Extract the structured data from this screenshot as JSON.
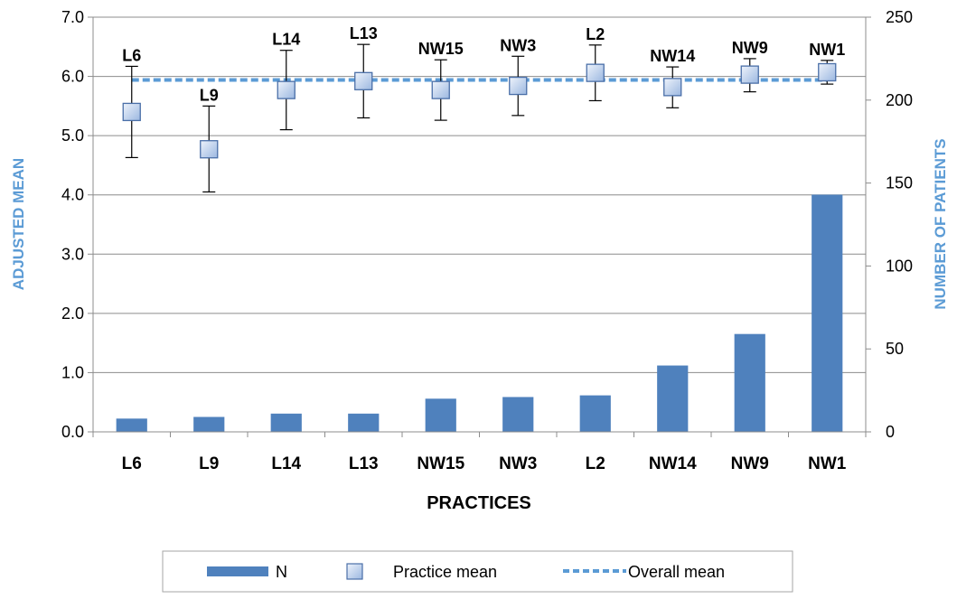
{
  "chart_data": {
    "type": "bar",
    "categories": [
      "L6",
      "L9",
      "L14",
      "L13",
      "NW15",
      "NW3",
      "L2",
      "NW14",
      "NW9",
      "NW1"
    ],
    "xlabel": "PRACTICES",
    "ylabel_left": "ADJUSTED MEAN",
    "ylabel_right": "NUMBER OF PATIENTS",
    "ylim_left": [
      0,
      7
    ],
    "ylim_right": [
      0,
      250
    ],
    "yticks_left": [
      "0.0",
      "1.0",
      "2.0",
      "3.0",
      "4.0",
      "5.0",
      "6.0",
      "7.0"
    ],
    "yticks_right": [
      "0",
      "50",
      "100",
      "150",
      "200",
      "250"
    ],
    "grid": true,
    "legend_position": "bottom",
    "series": [
      {
        "name": "N",
        "kind": "bar",
        "axis": "right",
        "color": "#4f81bd",
        "values": [
          8,
          9,
          11,
          11,
          20,
          21,
          22,
          40,
          59,
          143
        ]
      },
      {
        "name": "Practice mean",
        "kind": "marker",
        "axis": "left",
        "color": "#9bb7e0",
        "values": [
          5.4,
          4.77,
          5.77,
          5.92,
          5.77,
          5.84,
          6.06,
          5.82,
          6.03,
          6.07
        ],
        "error_low": [
          4.63,
          4.05,
          5.1,
          5.3,
          5.26,
          5.34,
          5.59,
          5.47,
          5.74,
          5.87
        ],
        "error_high": [
          6.17,
          5.5,
          6.44,
          6.54,
          6.28,
          6.34,
          6.53,
          6.16,
          6.3,
          6.27
        ],
        "point_labels": [
          "L6",
          "L9",
          "L14",
          "L13",
          "NW15",
          "NW3",
          "L2",
          "NW14",
          "NW9",
          "NW1"
        ]
      },
      {
        "name": "Overall mean",
        "kind": "line",
        "axis": "left",
        "color": "#5b9bd5",
        "value": 5.94
      }
    ]
  }
}
